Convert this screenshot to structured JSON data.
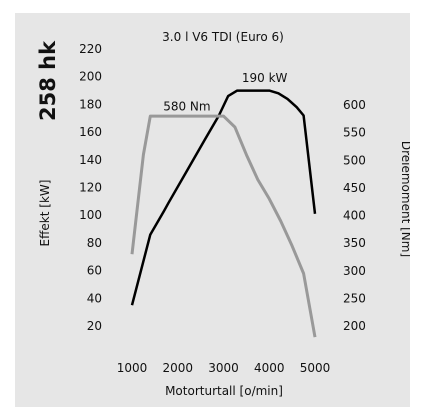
{
  "chart_data": {
    "type": "line",
    "title": "3.0 l V6 TDI (Euro 6)",
    "power_label": "258 hk",
    "xlabel": "Motorturtall [o/min]",
    "ylabel_left": "Effekt [kW]",
    "ylabel_right": "Dreiemoment [Nm]",
    "x_ticks": [
      1000,
      2000,
      3000,
      4000,
      5000
    ],
    "y_left_ticks": [
      20,
      40,
      60,
      80,
      100,
      120,
      140,
      160,
      180,
      200,
      220
    ],
    "y_right_ticks": [
      200,
      250,
      300,
      350,
      400,
      450,
      500,
      550,
      600
    ],
    "xlim": [
      1000,
      5000
    ],
    "ylim_left": [
      20,
      220
    ],
    "ylim_right": [
      200,
      600
    ],
    "grid": false,
    "series": [
      {
        "name": "Effekt",
        "axis": "left",
        "color": "#000000",
        "annotation": "190 kW",
        "x": [
          1000,
          1400,
          1700,
          1800,
          2200,
          2600,
          2900,
          3100,
          3300,
          3600,
          4000,
          4200,
          4400,
          4600,
          4750,
          5000
        ],
        "y": [
          35,
          86,
          103,
          109,
          132,
          155,
          172,
          186,
          190,
          190,
          190,
          188,
          184,
          178,
          172,
          101
        ]
      },
      {
        "name": "Dreiemoment",
        "axis": "right",
        "color": "#999999",
        "annotation": "580 Nm",
        "x": [
          1000,
          1250,
          1400,
          1750,
          3000,
          3250,
          3500,
          3750,
          4000,
          4250,
          4500,
          4750,
          5000
        ],
        "y": [
          330,
          510,
          580,
          580,
          580,
          560,
          510,
          465,
          430,
          390,
          345,
          295,
          180
        ]
      }
    ]
  }
}
